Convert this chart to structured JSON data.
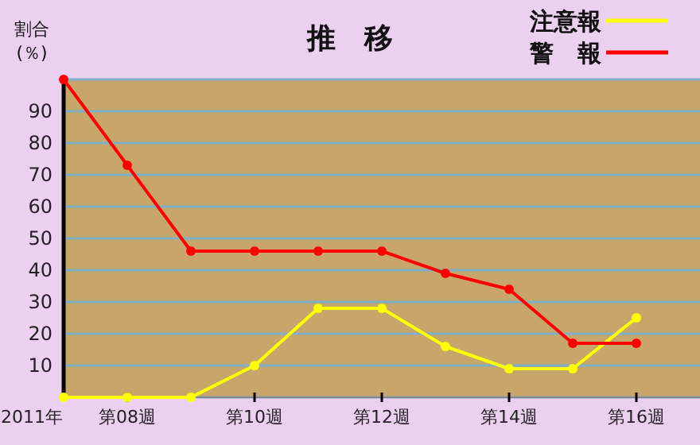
{
  "chart_data": {
    "type": "line",
    "title": "推　移",
    "ylabel": "割合\n(％)",
    "categories": [
      null,
      "第08週",
      null,
      "第10週",
      null,
      "第12週",
      null,
      "第14週",
      null,
      "第16週"
    ],
    "series": [
      {
        "name": "注意報",
        "color": "#ffff00",
        "values": [
          0,
          0,
          0,
          10,
          28,
          28,
          16,
          9,
          9,
          25
        ]
      },
      {
        "name": "警　報",
        "color": "#ff0000",
        "values": [
          100,
          73,
          46,
          46,
          46,
          46,
          39,
          34,
          17,
          17
        ]
      }
    ],
    "ylim": [
      0,
      100
    ],
    "yticks": [
      {
        "value": 0,
        "label": null
      },
      10,
      20,
      30,
      40,
      50,
      60,
      70,
      80,
      90,
      {
        "value": 100,
        "label": null
      }
    ],
    "grid": "y",
    "legend": "top right",
    "marker": "circle",
    "line_style": "solid",
    "annotations": [
      "2011年"
    ]
  }
}
